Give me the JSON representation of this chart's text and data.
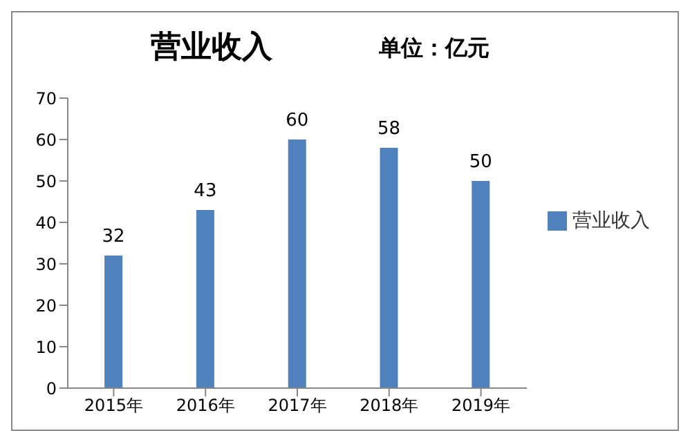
{
  "chart_data": {
    "type": "bar",
    "title": "营业收入",
    "subtitle": "单位：亿元",
    "categories": [
      "2015年",
      "2016年",
      "2017年",
      "2018年",
      "2019年"
    ],
    "series": [
      {
        "name": "营业收入",
        "color": "#4f81bd",
        "values": [
          32,
          43,
          60,
          58,
          50
        ]
      }
    ],
    "ylim": [
      0,
      70
    ],
    "yticks": [
      0,
      10,
      20,
      30,
      40,
      50,
      60,
      70
    ],
    "grid": false,
    "legend": "right",
    "data_labels": true
  }
}
